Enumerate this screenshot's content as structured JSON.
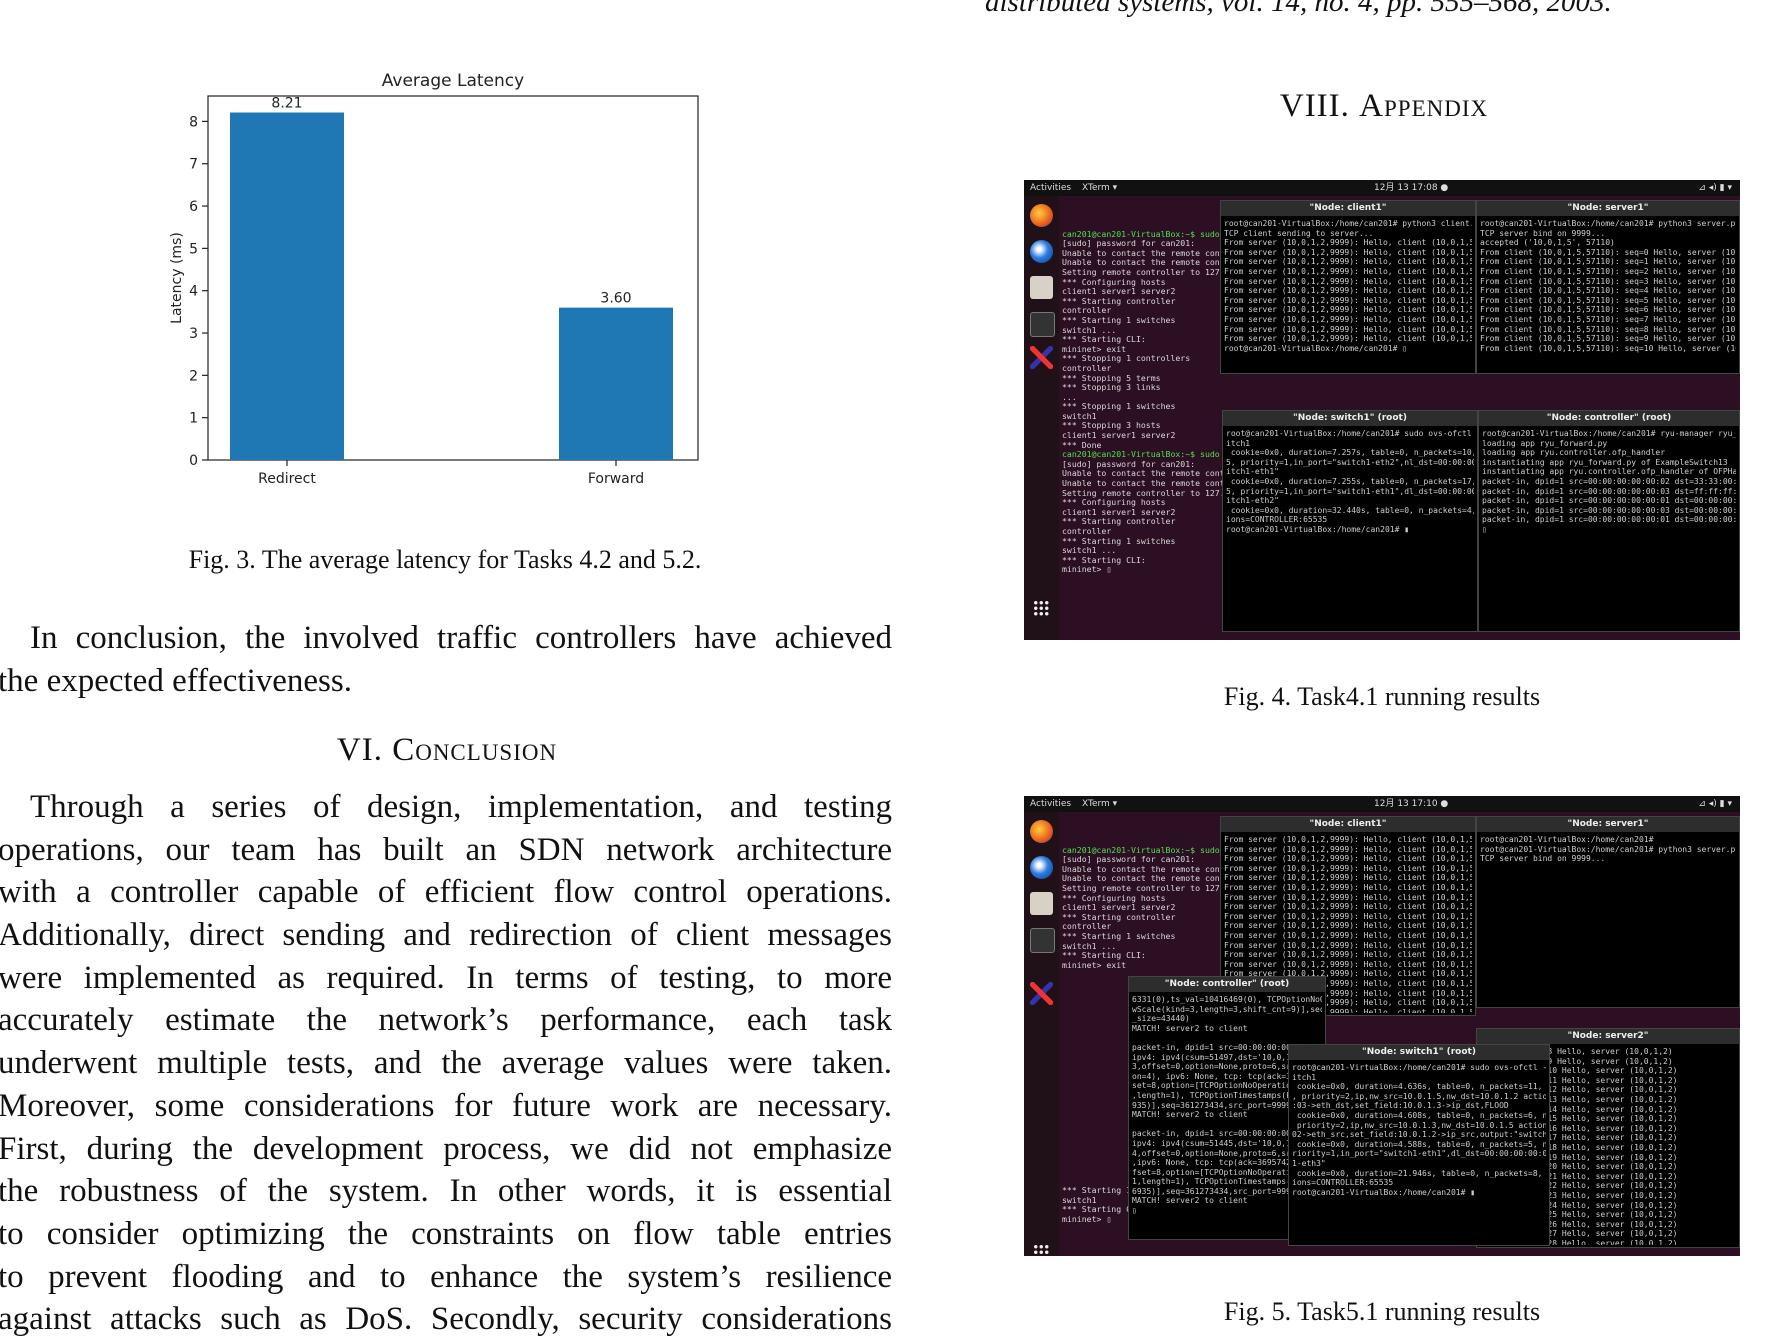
{
  "top_reference": "distributed systems, vol. 14, no. 4, pp. 555–568, 2003.",
  "chart_data": {
    "type": "bar",
    "title": "Average Latency",
    "categories": [
      "Redirect",
      "Forward"
    ],
    "values": [
      8.21,
      3.6
    ],
    "value_labels": [
      "8.21",
      "3.60"
    ],
    "xlabel": "",
    "ylabel": "Latency (ms)",
    "ylim": [
      0,
      8.6
    ],
    "yticks": [
      0,
      1,
      2,
      3,
      4,
      5,
      6,
      7,
      8
    ],
    "bar_color": "#1f77b4",
    "grid": false,
    "legend": "none"
  },
  "fig3_caption": "Fig. 3.  The average latency for Tasks 4.2 and 5.2.",
  "conclusion_intro_lines": [
    "In conclusion, the involved traffic controllers have achieved",
    "the expected effectiveness."
  ],
  "section6_heading": {
    "numeral": "VI. ",
    "title": "Conclusion"
  },
  "section6_lines": [
    "Through a series of design, implementation, and testing",
    "operations, our team has built an SDN network architecture",
    "with a controller capable of efficient flow control operations.",
    "Additionally, direct sending and redirection of client messages",
    "were implemented as required. In terms of testing, to more",
    "accurately estimate the network’s performance, each task",
    "underwent multiple tests, and the average values were taken.",
    "Moreover, some considerations for future work are necessary.",
    "First, during the development process, we did not emphasize",
    "the robustness of the system. In other words, it is essential",
    "to consider optimizing the constraints on flow table entries",
    "to prevent flooding and to enhance the system’s resilience",
    "against attacks such as DoS. Secondly, security considerations"
  ],
  "section8_heading": {
    "numeral": "VIII. ",
    "title": "Appendix"
  },
  "fig4_caption": "Fig. 4.  Task4.1 running results",
  "fig5_caption": "Fig. 5.  Task5.1 running results",
  "screenshot1": {
    "topbar": {
      "activities": "Activities",
      "app": "XTerm ▾",
      "clock": "12月 13 17:08 ●"
    },
    "windows": {
      "client": "\"Node: client1\"",
      "server": "\"Node: server1\"",
      "switch": "\"Node: switch1\" (root)",
      "controller": "\"Node: controller\" (root)"
    },
    "mininet_prompt": "can201@can201-VirtualBox:~$ sudo",
    "mininet_lines": "[sudo] password for can201:\nUnable to contact the remote cont\nUnable to contact the remote cont\nSetting remote controller to 127.\n*** Configuring hosts\nclient1 server1 server2\n*** Starting controller\ncontroller\n*** Starting 1 switches\nswitch1 ...\n*** Starting CLI:\nmininet> exit\n*** Stopping 1 controllers\ncontroller\n*** Stopping 5 terms\n*** Stopping 3 links\n...\n*** Stopping 1 switches\nswitch1\n*** Stopping 3 hosts\nclient1 server1 server2\n*** Done",
    "mininet_prompt2": "can201@can201-VirtualBox:~$ sudo",
    "mininet_lines2": "[sudo] password for can201:\nUnable to contact the remote cont\nUnable to contact the remote cont\nSetting remote controller to 127.\n*** Configuring hosts\nclient1 server1 server2\n*** Starting controller\ncontroller\n*** Starting 1 switches\nswitch1 ...\n*** Starting CLI:\nmininet> ▯",
    "client_lines": "root@can201-VirtualBox:/home/can201# python3 client.py\nTCP client sending to server...\nFrom server (10,0,1,2,9999): Hello, client (10,0,1,5) This is server (10,0,1,2)\nFrom server (10,0,1,2,9999): Hello, client (10,0,1,5) This is server (10,0,1,2)\nFrom server (10,0,1,2,9999): Hello, client (10,0,1,5) This is server (10,0,1,2)\nFrom server (10,0,1,2,9999): Hello, client (10,0,1,5) This is server (10,0,1,2)\nFrom server (10,0,1,2,9999): Hello, client (10,0,1,5) This is server (10,0,1,2)\nFrom server (10,0,1,2,9999): Hello, client (10,0,1,5) This is server (10,0,1,2)\nFrom server (10,0,1,2,9999): Hello, client (10,0,1,5) This is server (10,0,1,2)\nFrom server (10,0,1,2,9999): Hello, client (10,0,1,5) This is server (10,0,1,2)\nFrom server (10,0,1,2,9999): Hello, client (10,0,1,5) This is server (10,0,1,2)\nFrom server (10,0,1,2,9999): Hello, client (10,0,1,5) This is server (10,0,1,2)\nFrom server (10,0,1,2,9999): Hello, client (10,0,1,5) This is server (10,0,1,2)\nroot@can201-VirtualBox:/home/can201# ▯",
    "server_lines": "root@can201-VirtualBox:/home/can201# python3 server.py\nTCP server bind on 9999...\naccepted ('10,0,1,5', 57110)\nFrom client (10,0,1,5,57110): seq=0 Hello, server (10,0,1,2)\nFrom client (10,0,1,5,57110): seq=1 Hello, server (10,0,1,2)\nFrom client (10,0,1,5,57110): seq=2 Hello, server (10,0,1,2)\nFrom client (10,0,1,5,57110): seq=3 Hello, server (10,0,1,2)\nFrom client (10,0,1,5,57110): seq=4 Hello, server (10,0,1,2)\nFrom client (10,0,1,5,57110): seq=5 Hello, server (10,0,1,2)\nFrom client (10,0,1,5,57110): seq=6 Hello, server (10,0,1,2)\nFrom client (10,0,1,5,57110): seq=7 Hello, server (10,0,1,2)\nFrom client (10,0,1,5,57110): seq=8 Hello, server (10,0,1,2)\nFrom client (10,0,1,5,57110): seq=9 Hello, server (10,0,1,2)\nFrom client (10,0,1,5,57110): seq=10 Hello, server (10,0,1,2)",
    "switch_lines": "root@can201-VirtualBox:/home/can201# sudo ovs-ofctl -O OpenFlow13 dump-flows sw\nitch1\n cookie=0x0, duration=7.257s, table=0, n_packets=10, n_bytes=1076, idle_timeout=\n5, priority=1,in_port=\"switch1-eth2\",nl_dst=00:00:00:00:00:03 actions=output:\"sw\nitch1-eth1\"\n cookie=0x0, duration=7.255s, table=0, n_packets=17, n_bytes=1302, idle_timeout=\n5, priority=1,in_port=\"switch1-eth1\",dl_dst=00:00:00:00:00:01 actions=output:\"sw\nitch1-eth2\"\n cookie=0x0, duration=32.440s, table=0, n_packets=4, n_bytes=228, priority=0 act\nions=CONTROLLER:65535\nroot@can201-VirtualBox:/home/can201# ▮",
    "controller_lines": "root@can201-VirtualBox:/home/can201# ryu-manager ryu_forward.py\nloading app ryu_forward.py\nloading app ryu.controller.ofp_handler\ninstantiating app ryu_forward.py of ExampleSwitch13\ninstantiating app ryu.controller.ofp_handler of OFPHandler\npacket-in, dpid=1 src=00:00:00:00:00:02 dst=33:33:00:00:00:02 in_port=1\npacket-in, dpid=1 src=00:00:00:00:00:03 dst=ff:ff:ff:ff:ff:ff in_port=1\npacket-in, dpid=1 src=00:00:00:00:00:01 dst=00:00:00:00:00:03 in_port=2\npacket-in, dpid=1 src=00:00:00:00:00:03 dst=00:00:00:00:00:01 in_port=1\npacket-in, dpid=1 src=00:00:00:00:00:01 dst=00:00:00:00:00:03 in_port=1\n▯"
  },
  "screenshot2": {
    "topbar": {
      "activities": "Activities",
      "app": "XTerm ▾",
      "clock": "12月 13 17:10 ●"
    },
    "windows": {
      "client": "\"Node: client1\"",
      "server": "\"Node: server1\"",
      "controller": "\"Node: controller\" (root)",
      "switch": "\"Node: switch1\" (root)",
      "server2": "\"Node: server2\""
    },
    "mininet_prompt": "can201@can201-VirtualBox:~$ sudo",
    "mininet_lines": "[sudo] password for can201:\nUnable to contact the remote cont\nUnable to contact the remote cont\nSetting remote controller to 127.\n*** Configuring hosts\nclient1 server1 server2\n*** Starting controller\ncontroller\n*** Starting 1 switches\nswitch1 ...\n*** Starting CLI:\nmininet> exit",
    "mininet_tail": "*** Starting 1 switches\nswitch1\n*** Starting CLI:\nmininet> ▯",
    "client_lines": "From server (10,0,1,2,9999): Hello, client (10,0,1,5) This is server (10,0,1,2)\nFrom server (10,0,1,2,9999): Hello, client (10,0,1,5) This is server (10,0,1,2)\nFrom server (10,0,1,2,9999): Hello, client (10,0,1,5) This is server (10,0,1,2)\nFrom server (10,0,1,2,9999): Hello, client (10,0,1,5) This is server (10,0,1,3)\nFrom server (10,0,1,2,9999): Hello, client (10,0,1,5) This is server (10,0,1,3)\nFrom server (10,0,1,2,9999): Hello, client (10,0,1,5) This is server (10,0,1,3)\nFrom server (10,0,1,2,9999): Hello, client (10,0,1,5) This is server (10,0,1,3)\nFrom server (10,0,1,2,9999): Hello, client (10,0,1,5) This is server (10,0,1,3)\nFrom server (10,0,1,2,9999): Hello, client (10,0,1,5) This is server (10,0,1,3)\nFrom server (10,0,1,2,9999): Hello, client (10,0,1,5) This is server (10,0,1,3)\nFrom server (10,0,1,2,9999): Hello, client (10,0,1,5) This is server (10,0,1,3)\nFrom server (10,0,1,2,9999): Hello, client (10,0,1,5) This is server (10,0,1,3)\nFrom server (10,0,1,2,9999): Hello, client (10,0,1,5) This is server (10,0,1,3)\nFrom server (10,0,1,2,9999): Hello, client (10,0,1,5) This is server (10,0,1,3)\nFrom server (10,0,1,2,9999): Hello, client (10,0,1,5) This is server (10,0,1,3)\nFrom server (10,0,1,2,9999): Hello, client (10,0,1,5) This is server (10,0,1,3)\nFrom server (10,0,1,2,9999): Hello, client (10,0,1,5) This is server (10,0,1,3)\nFrom server (10,0,1,2,9999): Hello, client (10,0,1,5) This is server (10,0,1,3)\nFrom server (10,0,1,2,9999): Hello, client (10,0,1,5) This is server (10,0,1,3)",
    "server_lines": "root@can201-VirtualBox:/home/can201#\nroot@can201-VirtualBox:/home/can201# python3 server.py\nTCP server bind on 9999...",
    "controller_lines": "6331(0),ts_val=10416469(0), TCPOptionNoOperation(kind=1,length=1), TCPOptionWindo\nwScale(kind=3,length=3,shift_cnt=9)],seq=3612273435,src_port=9999,urgent=0,windo\n_size=43440)\nMATCH! server2 to client\n\npacket-in, dpid=1 src=00:00:00:00:00:02 dst=00:00:00:00:00:03 in_port=3\nipv4: ipv4(csum=51497,dst='10,0,1,5',flags=2,header_length=5,identifica\n3,offset=0,option=None,proto=6,src='10,0,1,3',tos=0,total_length=52,ttl\non=4), ipv6: None, tcp: tcp(ack=3695742967,bits=16,csum=55761,dst_port\nset=8,option=[TCPOptionNoOperation(kind=1,length=1), TCPOptionNoOperatio\n,length=1), TCPOptionTimestamps(kind=8,length=10,ts_ecr=600633115,ts_va\n935)],seq=361273434,src_port=9999,urgent=0,window_size=85)\nMATCH! server2 to client\n\npacket-in, dpid=1 src=00:00:00:00:00:02 dst=00:00:00:00:00:03 in_port=3\nipv4: ipv4(csum=51445,dst='10,0,1,5',flags=2,header_length=5,identifica\n4,offset=0,option=None,proto=6,src='10,0,1,3',tos=0,total_length=103,tt\n,ipv6: None, tcp: tcp(ack=3695742967,bits=24,csum=45343,dst_port\nfset=8,option=[TCPOptionNoOperation(kind=1,length=1), TCPOptionNoOperat\n1,length=1), TCPOptionTimestamps(kind=8,length=10,ts_ecr=600633115,ts_v\n6935)],seq=361273434,src_port=9999,urgent=0,window_size=85)\nMATCH! server2 to client\n▯",
    "switch_lines": "root@can201-VirtualBox:/home/can201# sudo ovs-ofctl -O OpenFlow13 dump-flows sw\nitch1\n cookie=0x0, duration=4.636s, table=0, n_packets=11, n_bytes=876, idle_timeout=5\n, priority=2,ip,nw_src=10.0.1.5,nw_dst=10.0.1.2 actions=set_field:00:00:00:00:00\n:03->eth_dst,set_field:10.0.1.3->ip_dst,FLOOD\n cookie=0x0, duration=4.608s, table=0, n_packets=6, n_bytes=651, idle_timeout=5,\n priority=2,ip,nw_src=10.0.1.3,nw_dst=10.0.1.5 actions=set_field:00:00:00:00:00:\n02->eth_src,set_field:10.0.1.2->ip_src,output:\"switch1-eth1\"\n cookie=0x0, duration=4.588s, table=0, n_packets=5, n_bytes=..., idle_timeout=5, p\nriority=1,in_port=\"switch1-eth1\",dl_dst=00:00:00:00:00:02 actions=output:\"switch\n1-eth3\"\n cookie=0x0, duration=21.946s, table=0, n_packets=8, n_bytes=460, priority=0 act\nions=CONTROLLER:65535\nroot@can201-VirtualBox:/home/can201# ▮",
    "server2_lines": ",54262)): seq=8 Hello, server (10,0,1,2)\n,54262)): seq=9 Hello, server (10,0,1,2)\n,54262)): seq=10 Hello, server (10,0,1,2)\n,54262)): seq=11 Hello, server (10,0,1,2)\n,54262)): seq=12 Hello, server (10,0,1,2)\n,54262)): seq=13 Hello, server (10,0,1,2)\n,54262)): seq=14 Hello, server (10,0,1,2)\n,54262)): seq=15 Hello, server (10,0,1,2)\n,54262)): seq=16 Hello, server (10,0,1,2)\n,54262)): seq=17 Hello, server (10,0,1,2)\n,54262)): seq=18 Hello, server (10,0,1,2)\n,54262)): seq=19 Hello, server (10,0,1,2)\n,54262)): seq=20 Hello, server (10,0,1,2)\n,54262)): seq=21 Hello, server (10,0,1,2)\n,54262)): seq=22 Hello, server (10,0,1,2)\n,54262)): seq=23 Hello, server (10,0,1,2)\n,54262)): seq=24 Hello, server (10,0,1,2)\n,54262)): seq=25 Hello, server (10,0,1,2)\n,54262)): seq=26 Hello, server (10,0,1,2)\n,54262)): seq=27 Hello, server (10,0,1,2)\n,54262)): seq=28 Hello, server (10,0,1,2)\n,54262)): seq=29 Hello, server (10,0,1,2)\n,54262)): seq=30 Hello, server (10,0,1,2)\n,54262)): seq=31 Hello, server (10,0,1,2)"
  }
}
